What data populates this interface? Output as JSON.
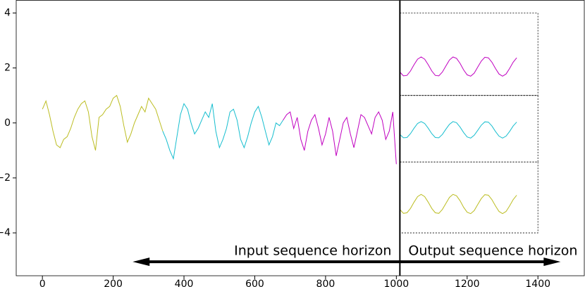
{
  "chart_data": {
    "type": "line",
    "xlim": [
      -74,
      1531
    ],
    "ylim": [
      -5.56,
      4.46
    ],
    "xticks": [
      0,
      200,
      400,
      600,
      800,
      1000,
      1200,
      1400
    ],
    "yticks": [
      {
        "value": -4,
        "label": "−4"
      },
      {
        "value": -2,
        "label": "−2"
      },
      0,
      2,
      4
    ],
    "vline": 1010,
    "boxes": [
      {
        "x": [
          1010,
          1400
        ],
        "y": [
          1,
          4
        ]
      },
      {
        "x": [
          1010,
          1400
        ],
        "y": [
          -1.42,
          1
        ]
      },
      {
        "x": [
          1010,
          1400
        ],
        "y": [
          -4,
          -1.42
        ]
      }
    ],
    "annotations": [
      {
        "text": "Input sequence horizon",
        "x_from": 1010,
        "x_to": 255,
        "y": -5.05
      },
      {
        "text": "Output sequence horizon",
        "x_from": 1010,
        "x_to": 1464,
        "y": -5.05
      }
    ],
    "series": [
      {
        "color": "#bcbd22",
        "x": [
          0,
          10,
          20,
          30,
          40,
          50,
          60,
          70,
          80,
          90,
          100,
          110,
          120,
          130,
          140,
          150,
          160,
          170,
          180,
          190,
          200,
          210,
          220,
          230,
          240,
          250,
          260,
          270,
          280,
          290,
          300,
          310,
          320,
          330,
          340
        ],
        "values": [
          0.5,
          0.8,
          0.3,
          -0.3,
          -0.8,
          -0.9,
          -0.6,
          -0.5,
          -0.2,
          0.2,
          0.5,
          0.7,
          0.8,
          0.4,
          -0.5,
          -1.0,
          0.2,
          0.3,
          0.5,
          0.6,
          0.9,
          1.0,
          0.6,
          -0.1,
          -0.7,
          -0.4,
          0.0,
          0.3,
          0.6,
          0.4,
          0.9,
          0.7,
          0.5,
          0.1,
          -0.3
        ]
      },
      {
        "color": "#17becf",
        "x": [
          340,
          350,
          360,
          370,
          380,
          390,
          400,
          410,
          420,
          430,
          440,
          450,
          460,
          470,
          480,
          490,
          500,
          510,
          520,
          530,
          540,
          550,
          560,
          570,
          580,
          590,
          600,
          610,
          620,
          630,
          640,
          650,
          660,
          670,
          680
        ],
        "values": [
          -0.3,
          -0.6,
          -1.0,
          -1.3,
          -0.5,
          0.3,
          0.7,
          0.5,
          0.0,
          -0.4,
          -0.2,
          0.1,
          0.4,
          0.2,
          0.7,
          -0.3,
          -0.9,
          -0.6,
          -0.2,
          0.4,
          0.5,
          0.1,
          -0.6,
          -0.9,
          -0.5,
          0.0,
          0.4,
          0.6,
          0.2,
          -0.3,
          -0.8,
          -0.5,
          0.0,
          -0.1,
          0.1
        ]
      },
      {
        "color": "#c000c0",
        "x": [
          680,
          690,
          700,
          710,
          720,
          730,
          740,
          750,
          760,
          770,
          780,
          790,
          800,
          810,
          820,
          830,
          840,
          850,
          860,
          870,
          880,
          890,
          900,
          910,
          920,
          930,
          940,
          950,
          960,
          970,
          980,
          990,
          1000
        ],
        "values": [
          0.1,
          0.3,
          0.4,
          -0.2,
          0.2,
          -0.6,
          -1.0,
          -0.3,
          0.1,
          0.3,
          -0.2,
          -0.8,
          -0.4,
          0.2,
          -0.3,
          -1.2,
          -0.6,
          0.0,
          0.2,
          -0.4,
          -0.9,
          -0.3,
          0.3,
          0.2,
          -0.1,
          -0.4,
          0.2,
          0.4,
          0.1,
          -0.6,
          -0.3,
          0.4,
          -1.5
        ]
      },
      {
        "color": "#c000c0",
        "x": [
          1010,
          1020,
          1030,
          1040,
          1050,
          1060,
          1070,
          1080,
          1090,
          1100,
          1110,
          1120,
          1130,
          1140,
          1150,
          1160,
          1170,
          1180,
          1190,
          1200,
          1210,
          1220,
          1230,
          1240,
          1250,
          1260,
          1270,
          1280,
          1290,
          1300,
          1310,
          1320,
          1330,
          1340
        ],
        "values": [
          1.85,
          1.71,
          1.73,
          1.89,
          2.12,
          2.32,
          2.4,
          2.32,
          2.12,
          1.89,
          1.73,
          1.71,
          1.85,
          2.07,
          2.29,
          2.4,
          2.35,
          2.17,
          1.93,
          1.75,
          1.7,
          1.81,
          2.03,
          2.25,
          2.39,
          2.37,
          2.21,
          1.98,
          1.78,
          1.7,
          1.78,
          1.98,
          2.21,
          2.37
        ]
      },
      {
        "color": "#17becf",
        "x": [
          1010,
          1020,
          1030,
          1040,
          1050,
          1060,
          1070,
          1080,
          1090,
          1100,
          1110,
          1120,
          1130,
          1140,
          1150,
          1160,
          1170,
          1180,
          1190,
          1200,
          1210,
          1220,
          1230,
          1240,
          1250,
          1260,
          1270,
          1280,
          1290,
          1300,
          1310,
          1320,
          1330,
          1340
        ],
        "values": [
          -0.42,
          -0.54,
          -0.53,
          -0.39,
          -0.19,
          -0.02,
          0.05,
          -0.02,
          -0.19,
          -0.39,
          -0.53,
          -0.54,
          -0.42,
          -0.23,
          -0.05,
          0.05,
          0.01,
          -0.15,
          -0.35,
          -0.51,
          -0.55,
          -0.45,
          -0.27,
          -0.08,
          0.04,
          0.03,
          -0.11,
          -0.31,
          -0.48,
          -0.55,
          -0.48,
          -0.31,
          -0.11,
          0.03
        ]
      },
      {
        "color": "#bcbd22",
        "x": [
          1010,
          1020,
          1030,
          1040,
          1050,
          1060,
          1070,
          1080,
          1090,
          1100,
          1110,
          1120,
          1130,
          1140,
          1150,
          1160,
          1170,
          1180,
          1190,
          1200,
          1210,
          1220,
          1230,
          1240,
          1250,
          1260,
          1270,
          1280,
          1290,
          1300,
          1310,
          1320,
          1330,
          1340
        ],
        "values": [
          -3.15,
          -3.29,
          -3.27,
          -3.11,
          -2.88,
          -2.68,
          -2.6,
          -2.68,
          -2.88,
          -3.11,
          -3.27,
          -3.29,
          -3.15,
          -2.93,
          -2.71,
          -2.6,
          -2.65,
          -2.83,
          -3.07,
          -3.25,
          -3.3,
          -3.19,
          -2.97,
          -2.75,
          -2.61,
          -2.63,
          -2.79,
          -3.02,
          -3.22,
          -3.3,
          -3.22,
          -3.02,
          -2.79,
          -2.63
        ]
      }
    ]
  }
}
